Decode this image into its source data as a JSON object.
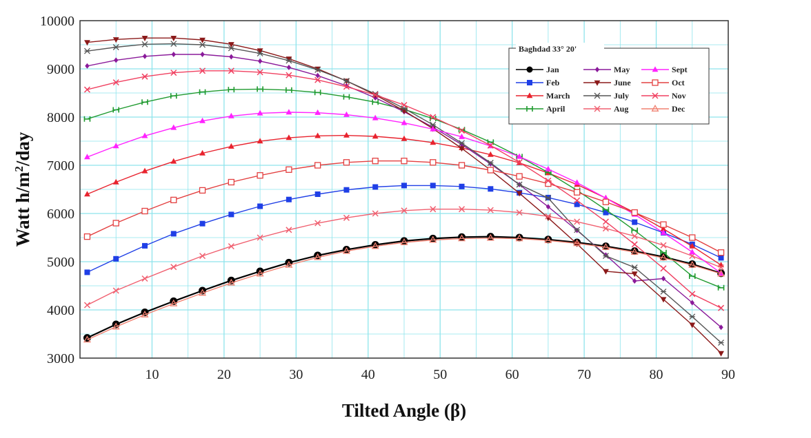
{
  "chart_data": {
    "type": "line",
    "title": "",
    "legend_title": "Baghdad 33° 20'",
    "legend_position": "top-right",
    "xlabel": "Tilted Angle (β)",
    "ylabel_parts": {
      "base": "Watt h/m",
      "sup": "2",
      "tail": "/day"
    },
    "xlim": [
      0,
      90
    ],
    "ylim": [
      3000,
      10000
    ],
    "xticks": [
      10,
      20,
      30,
      40,
      50,
      60,
      70,
      80,
      90
    ],
    "yticks": [
      3000,
      4000,
      5000,
      6000,
      7000,
      8000,
      9000,
      10000
    ],
    "grid": true,
    "x": [
      1,
      5,
      9,
      13,
      17,
      21,
      25,
      29,
      33,
      37,
      41,
      45,
      49,
      53,
      57,
      61,
      65,
      69,
      73,
      77,
      81,
      85,
      89
    ],
    "series": [
      {
        "name": "Jan",
        "color": "#000000",
        "marker": "circle",
        "values": [
          3420,
          3700,
          3950,
          4180,
          4400,
          4610,
          4800,
          4980,
          5130,
          5250,
          5350,
          5430,
          5480,
          5510,
          5520,
          5500,
          5460,
          5400,
          5320,
          5220,
          5100,
          4950,
          4760
        ]
      },
      {
        "name": "Feb",
        "color": "#1f3fe6",
        "marker": "square",
        "values": [
          4780,
          5060,
          5330,
          5580,
          5790,
          5980,
          6150,
          6290,
          6400,
          6490,
          6550,
          6580,
          6580,
          6560,
          6510,
          6430,
          6330,
          6190,
          6020,
          5820,
          5600,
          5360,
          5080
        ]
      },
      {
        "name": "March",
        "color": "#e8232e",
        "marker": "triangle",
        "values": [
          6400,
          6650,
          6880,
          7080,
          7250,
          7390,
          7500,
          7570,
          7610,
          7620,
          7600,
          7550,
          7470,
          7360,
          7220,
          7050,
          6840,
          6600,
          6320,
          6020,
          5680,
          5320,
          4930
        ]
      },
      {
        "name": "April",
        "color": "#1f9a2f",
        "marker": "hourglass",
        "values": [
          7960,
          8150,
          8310,
          8440,
          8520,
          8570,
          8580,
          8560,
          8510,
          8420,
          8310,
          8160,
          7970,
          7740,
          7480,
          7180,
          6850,
          6480,
          6080,
          5650,
          5190,
          4700,
          4460
        ]
      },
      {
        "name": "May",
        "color": "#8a1a9a",
        "marker": "diamond",
        "values": [
          9060,
          9180,
          9260,
          9300,
          9300,
          9250,
          9160,
          9030,
          8860,
          8650,
          8400,
          8110,
          7790,
          7430,
          7030,
          6600,
          6140,
          5650,
          5140,
          4600,
          4650,
          4150,
          3640
        ]
      },
      {
        "name": "June",
        "color": "#8b1a1a",
        "marker": "triangle-down",
        "values": [
          9550,
          9610,
          9640,
          9640,
          9600,
          9510,
          9380,
          9210,
          9000,
          8750,
          8460,
          8130,
          7760,
          7350,
          6900,
          6420,
          5910,
          5370,
          4800,
          4750,
          4220,
          3690,
          3100
        ]
      },
      {
        "name": "July",
        "color": "#555555",
        "marker": "star",
        "values": [
          9370,
          9450,
          9510,
          9520,
          9500,
          9430,
          9320,
          9170,
          8980,
          8750,
          8480,
          8180,
          7840,
          7460,
          7050,
          6600,
          6320,
          5660,
          5120,
          4880,
          4380,
          3860,
          3320
        ]
      },
      {
        "name": "Aug",
        "color": "#f06070",
        "marker": "x",
        "values": [
          4100,
          4400,
          4650,
          4890,
          5120,
          5320,
          5500,
          5660,
          5800,
          5910,
          6000,
          6060,
          6090,
          6090,
          6070,
          6020,
          5940,
          5830,
          5690,
          5530,
          5340,
          5120,
          4880
        ]
      },
      {
        "name": "Sept",
        "color": "#ff22ff",
        "marker": "triangle",
        "values": [
          7170,
          7400,
          7610,
          7780,
          7920,
          8020,
          8080,
          8100,
          8090,
          8050,
          7980,
          7880,
          7750,
          7590,
          7400,
          7180,
          6920,
          6640,
          6320,
          5980,
          5600,
          5200,
          4760
        ]
      },
      {
        "name": "Oct",
        "color": "#e34040",
        "marker": "square-open",
        "values": [
          5520,
          5800,
          6050,
          6280,
          6480,
          6650,
          6790,
          6910,
          7000,
          7060,
          7090,
          7090,
          7060,
          7000,
          6900,
          6770,
          6620,
          6440,
          6240,
          6020,
          5770,
          5500,
          5190
        ]
      },
      {
        "name": "Nov",
        "color": "#f04060",
        "marker": "x",
        "values": [
          8570,
          8720,
          8840,
          8920,
          8960,
          8960,
          8930,
          8870,
          8770,
          8630,
          8460,
          8250,
          8000,
          7720,
          7410,
          7060,
          6680,
          6270,
          5830,
          5360,
          4860,
          4330,
          4040
        ]
      },
      {
        "name": "Dec",
        "color": "#f08070",
        "marker": "triangle-open",
        "values": [
          3380,
          3650,
          3900,
          4130,
          4350,
          4560,
          4750,
          4930,
          5090,
          5220,
          5320,
          5400,
          5450,
          5480,
          5490,
          5480,
          5440,
          5380,
          5300,
          5200,
          5080,
          4930,
          4750
        ]
      }
    ]
  }
}
